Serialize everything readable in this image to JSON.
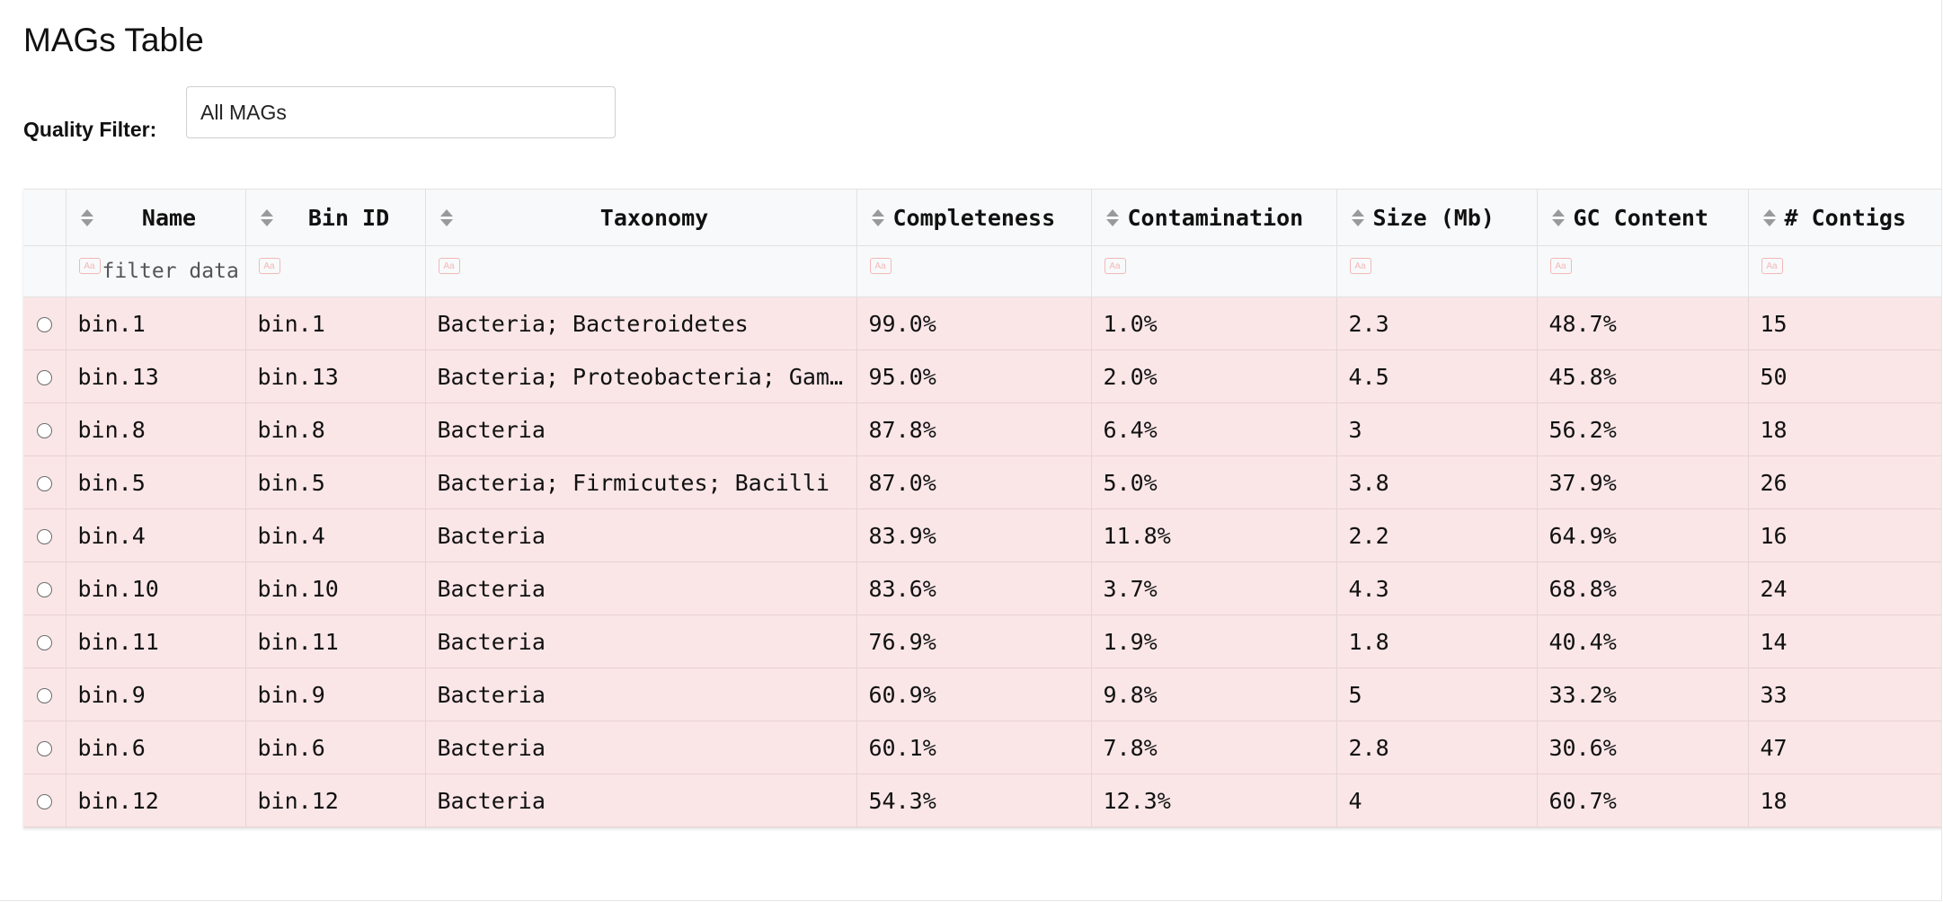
{
  "page": {
    "title": "MAGs Table"
  },
  "quality_filter": {
    "label": "Quality Filter:",
    "value": "All MAGs"
  },
  "table": {
    "columns": [
      {
        "key": "name",
        "label": "Name",
        "filter_placeholder": "filter data"
      },
      {
        "key": "bin_id",
        "label": "Bin ID",
        "filter_placeholder": ""
      },
      {
        "key": "taxonomy",
        "label": "Taxonomy",
        "filter_placeholder": ""
      },
      {
        "key": "completeness",
        "label": "Completeness",
        "filter_placeholder": ""
      },
      {
        "key": "contamination",
        "label": "Contamination",
        "filter_placeholder": ""
      },
      {
        "key": "size",
        "label": "Size (Mb)",
        "filter_placeholder": ""
      },
      {
        "key": "gc",
        "label": "GC Content",
        "filter_placeholder": ""
      },
      {
        "key": "contigs",
        "label": "# Contigs",
        "filter_placeholder": ""
      }
    ],
    "filter_icon_text": "Aa",
    "rows": [
      {
        "name": "bin.1",
        "bin_id": "bin.1",
        "taxonomy": "Bacteria; Bacteroidetes",
        "completeness": "99.0%",
        "contamination": "1.0%",
        "size": "2.3",
        "gc": "48.7%",
        "contigs": "15"
      },
      {
        "name": "bin.13",
        "bin_id": "bin.13",
        "taxonomy": "Bacteria; Proteobacteria; Gammaproteobacteria",
        "completeness": "95.0%",
        "contamination": "2.0%",
        "size": "4.5",
        "gc": "45.8%",
        "contigs": "50"
      },
      {
        "name": "bin.8",
        "bin_id": "bin.8",
        "taxonomy": "Bacteria",
        "completeness": "87.8%",
        "contamination": "6.4%",
        "size": "3",
        "gc": "56.2%",
        "contigs": "18"
      },
      {
        "name": "bin.5",
        "bin_id": "bin.5",
        "taxonomy": "Bacteria; Firmicutes; Bacilli",
        "completeness": "87.0%",
        "contamination": "5.0%",
        "size": "3.8",
        "gc": "37.9%",
        "contigs": "26"
      },
      {
        "name": "bin.4",
        "bin_id": "bin.4",
        "taxonomy": "Bacteria",
        "completeness": "83.9%",
        "contamination": "11.8%",
        "size": "2.2",
        "gc": "64.9%",
        "contigs": "16"
      },
      {
        "name": "bin.10",
        "bin_id": "bin.10",
        "taxonomy": "Bacteria",
        "completeness": "83.6%",
        "contamination": "3.7%",
        "size": "4.3",
        "gc": "68.8%",
        "contigs": "24"
      },
      {
        "name": "bin.11",
        "bin_id": "bin.11",
        "taxonomy": "Bacteria",
        "completeness": "76.9%",
        "contamination": "1.9%",
        "size": "1.8",
        "gc": "40.4%",
        "contigs": "14"
      },
      {
        "name": "bin.9",
        "bin_id": "bin.9",
        "taxonomy": "Bacteria",
        "completeness": "60.9%",
        "contamination": "9.8%",
        "size": "5",
        "gc": "33.2%",
        "contigs": "33"
      },
      {
        "name": "bin.6",
        "bin_id": "bin.6",
        "taxonomy": "Bacteria",
        "completeness": "60.1%",
        "contamination": "7.8%",
        "size": "2.8",
        "gc": "30.6%",
        "contigs": "47"
      },
      {
        "name": "bin.12",
        "bin_id": "bin.12",
        "taxonomy": "Bacteria",
        "completeness": "54.3%",
        "contamination": "12.3%",
        "size": "4",
        "gc": "60.7%",
        "contigs": "18"
      }
    ]
  },
  "colors": {
    "row_background": "#fae6e7",
    "header_background": "#f8f9fa",
    "filter_icon": "#f3b8b8"
  }
}
